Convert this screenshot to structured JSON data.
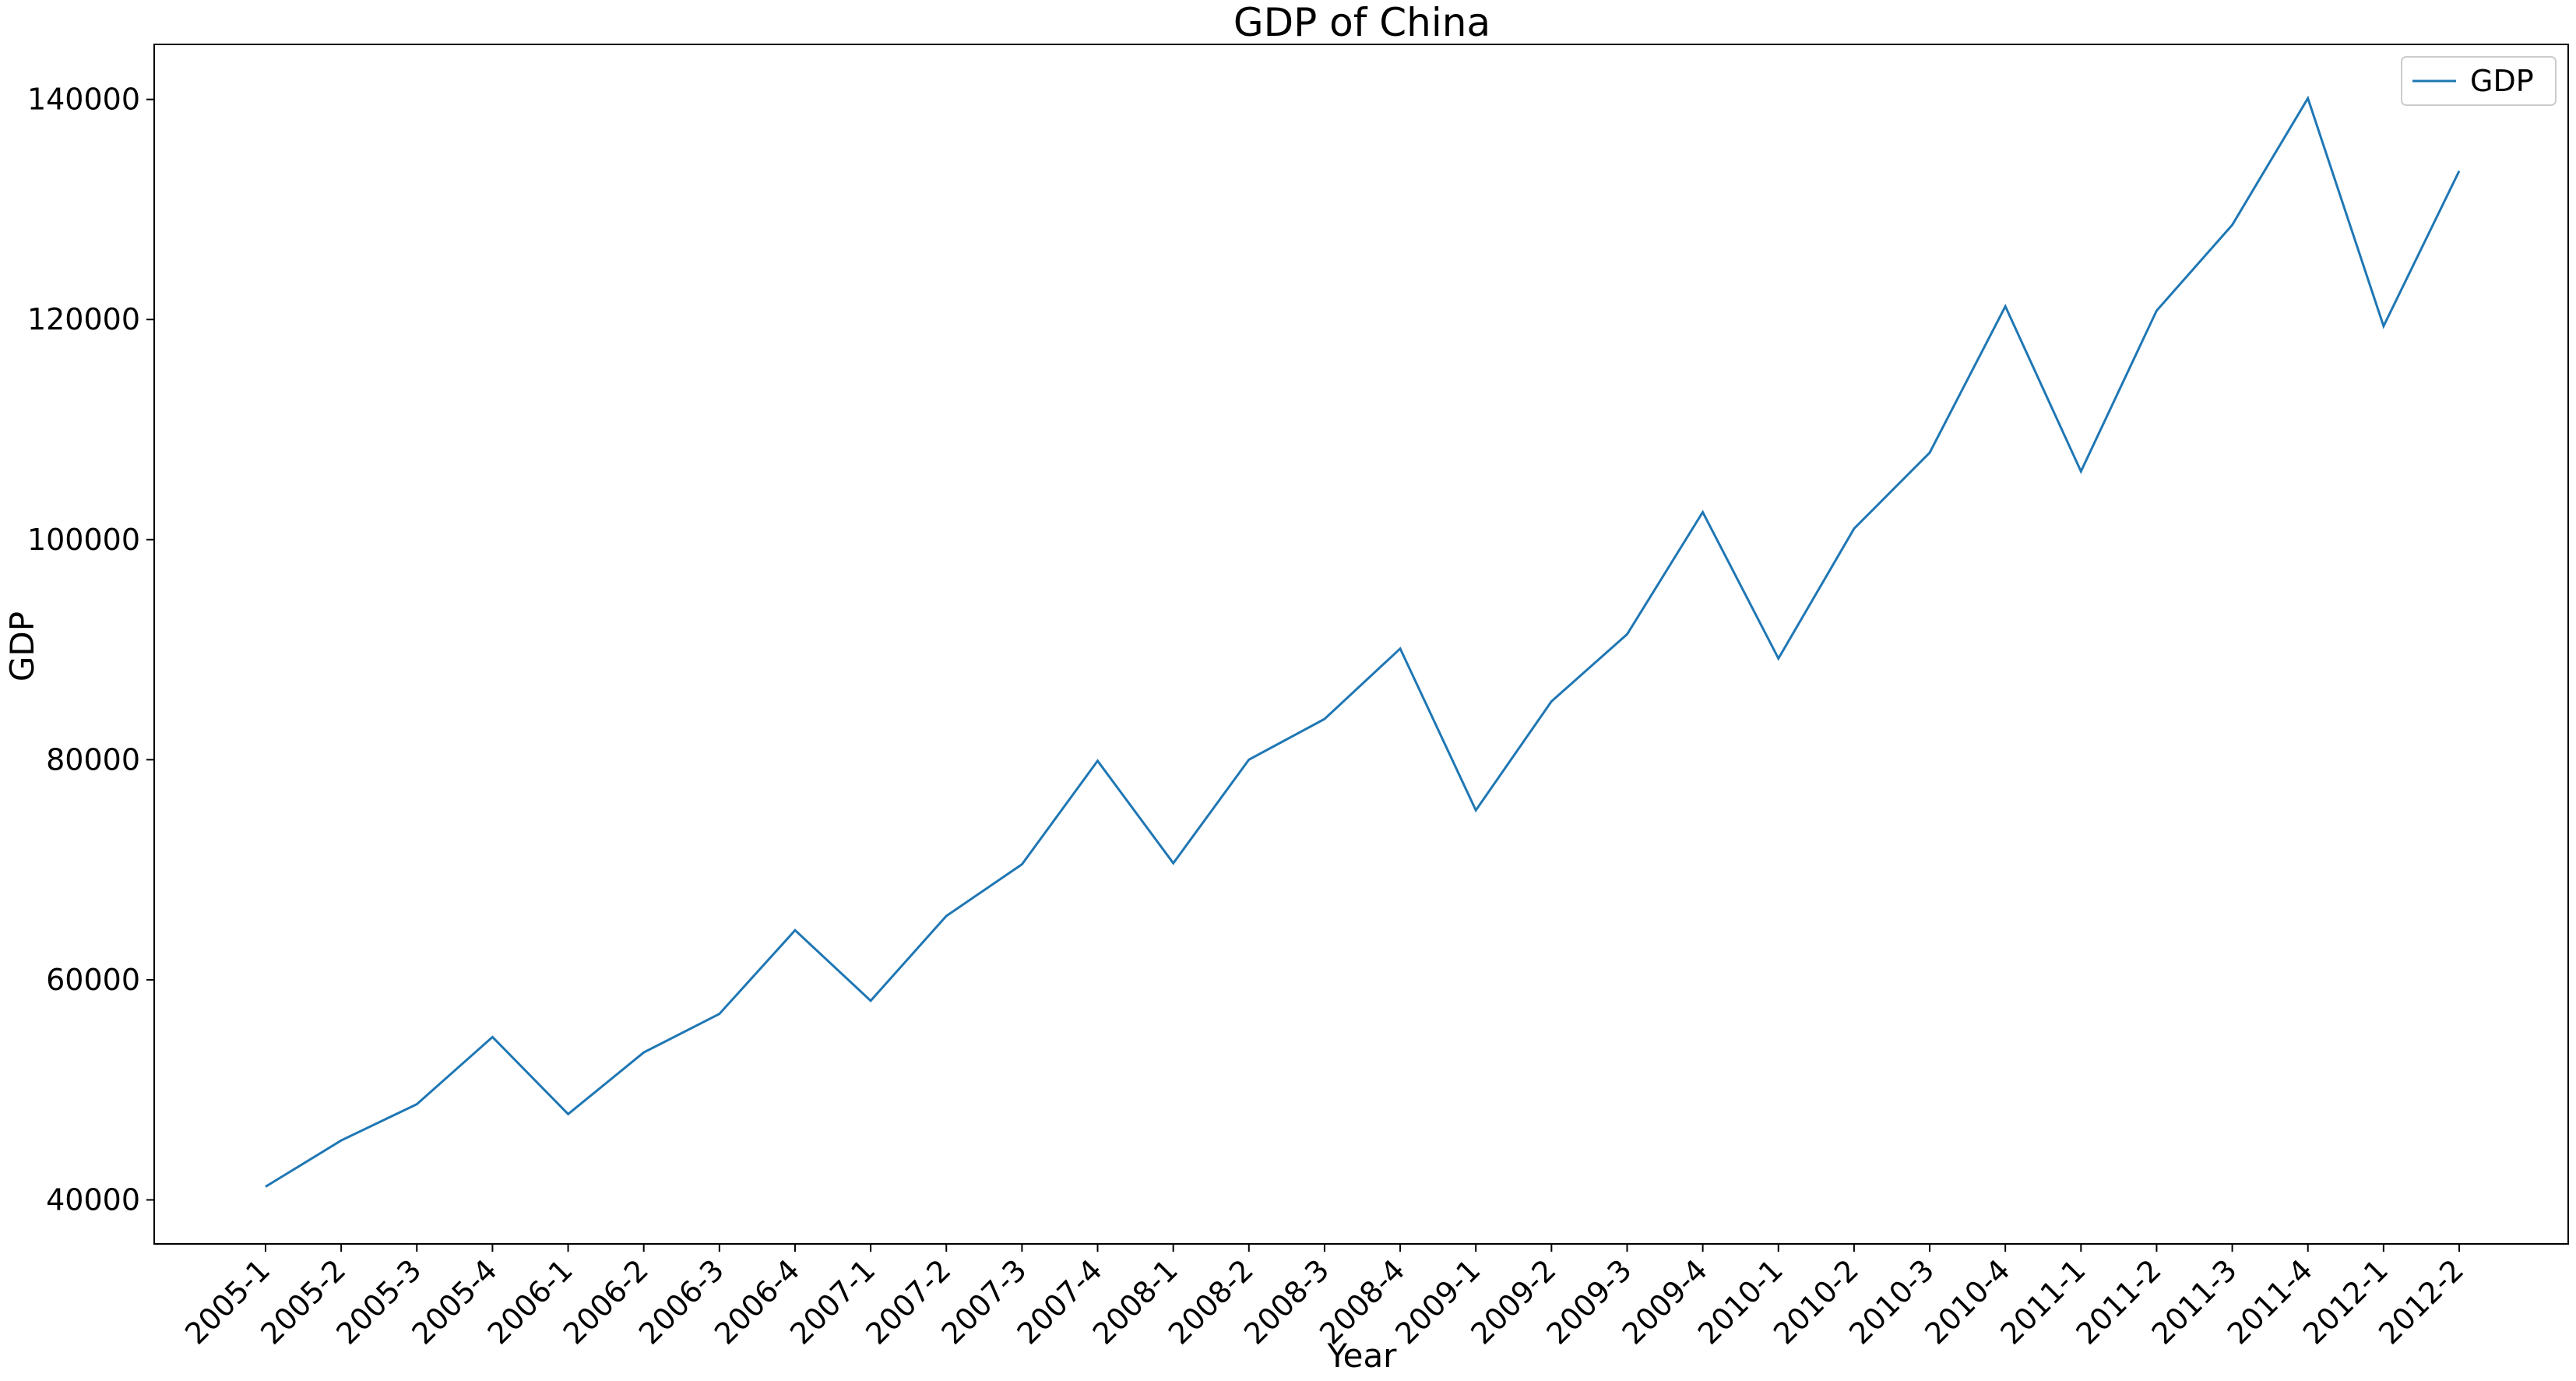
{
  "chart_data": {
    "type": "line",
    "title": "GDP of China",
    "xlabel": "Year",
    "ylabel": "GDP",
    "categories": [
      "2005-1",
      "2005-2",
      "2005-3",
      "2005-4",
      "2006-1",
      "2006-2",
      "2006-3",
      "2006-4",
      "2007-1",
      "2007-2",
      "2007-3",
      "2007-4",
      "2008-1",
      "2008-2",
      "2008-3",
      "2008-4",
      "2009-1",
      "2009-2",
      "2009-3",
      "2009-4",
      "2010-1",
      "2010-2",
      "2010-3",
      "2010-4",
      "2011-1",
      "2011-2",
      "2011-3",
      "2011-4",
      "2012-1",
      "2012-2"
    ],
    "series": [
      {
        "name": "GDP",
        "color": "#1f77b4",
        "values": [
          41200,
          45400,
          48700,
          54800,
          47800,
          53400,
          56900,
          64500,
          58100,
          65800,
          70500,
          79900,
          70600,
          80000,
          83700,
          90100,
          75400,
          85300,
          91400,
          102500,
          89200,
          101000,
          107900,
          121200,
          106200,
          120800,
          128600,
          140100,
          119400,
          133500
        ]
      }
    ],
    "ylim": [
      36000,
      145000
    ],
    "yticks": [
      40000,
      60000,
      80000,
      100000,
      120000,
      140000
    ],
    "grid": false,
    "legend": "top-right"
  }
}
